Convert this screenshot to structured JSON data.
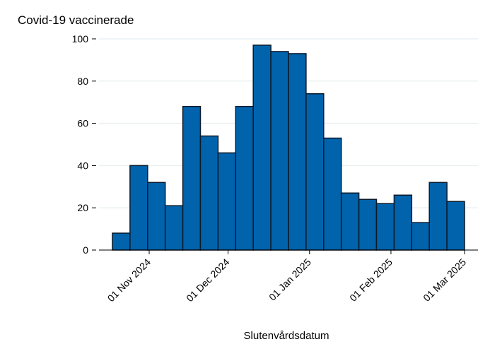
{
  "chart_data": {
    "type": "bar",
    "title": "Covid-19 vaccinerade",
    "xlabel": "Slutenvårdsdatum",
    "ylabel": "",
    "x_start": "2024-10-18",
    "x_end": "2025-03-01",
    "bins": 20,
    "values": [
      8,
      40,
      32,
      21,
      68,
      54,
      46,
      68,
      97,
      94,
      93,
      74,
      53,
      27,
      24,
      22,
      26,
      13,
      32,
      23
    ],
    "ylim": [
      0,
      100
    ],
    "yticks": [
      0,
      20,
      40,
      60,
      80,
      100
    ],
    "xticks": [
      {
        "date": "2024-11-01",
        "label": "01 Nov 2024"
      },
      {
        "date": "2024-12-01",
        "label": "01 Dec 2024"
      },
      {
        "date": "2025-01-01",
        "label": "01 Jan 2025"
      },
      {
        "date": "2025-02-01",
        "label": "01 Feb 2025"
      },
      {
        "date": "2025-03-01",
        "label": "01 Mar 2025"
      }
    ],
    "grid": true,
    "bar_color": "#0063ac",
    "edge_color": "#0b1a2a"
  }
}
